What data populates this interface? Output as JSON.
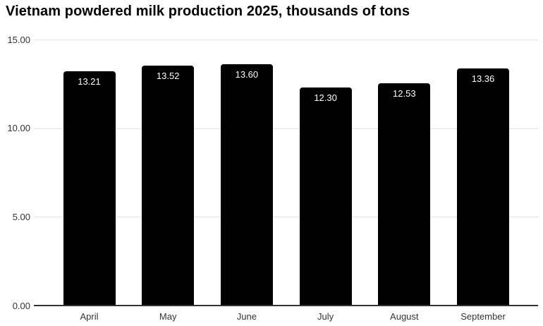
{
  "chart_data": {
    "type": "bar",
    "title": "Vietnam powdered milk production 2025, thousands of tons",
    "categories": [
      "April",
      "May",
      "June",
      "July",
      "August",
      "September"
    ],
    "values": [
      13.21,
      13.52,
      13.6,
      12.3,
      12.53,
      13.36
    ],
    "value_labels": [
      "13.21",
      "13.52",
      "13.60",
      "12.30",
      "12.53",
      "13.36"
    ],
    "xlabel": "",
    "ylabel": "",
    "ylim": [
      0,
      15
    ],
    "ytick_values": [
      0,
      5,
      10,
      15
    ],
    "ytick_labels": [
      "0.00",
      "5.00",
      "10.00",
      "15.00"
    ],
    "grid": "horizontal",
    "legend": "none",
    "colors": {
      "bar": "#000000",
      "bar_value_text": "#ffffff",
      "title_text": "#000000",
      "axis_tick_text": "#333333",
      "gridline": "#e2e2e2",
      "baseline": "#333333",
      "background": "#ffffff"
    }
  }
}
